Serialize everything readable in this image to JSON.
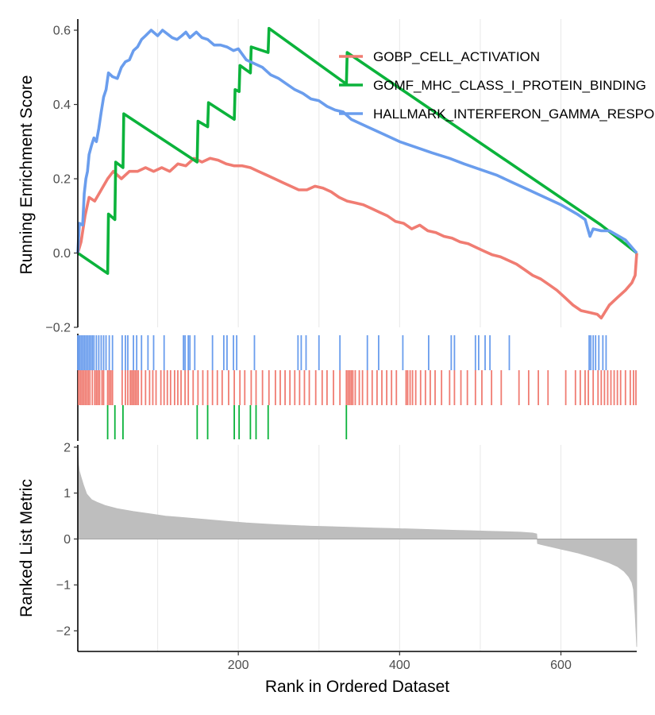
{
  "chart_data": {
    "type": "line",
    "title": "",
    "x_label": "Rank in Ordered Dataset",
    "x_range": [
      1,
      694
    ],
    "x_ticks": [
      200,
      400,
      600
    ],
    "x_tick_labels": [
      "200",
      "400",
      "600"
    ],
    "x_gridlines": [
      100,
      200,
      300,
      400,
      500,
      600
    ],
    "legend_position": "top-right",
    "es_panel": {
      "y_label": "Running Enrichment Score",
      "y_range": [
        -0.2,
        0.63
      ],
      "y_ticks": [
        -0.2,
        0.0,
        0.2,
        0.4,
        0.6
      ],
      "y_tick_labels": [
        "−0.2",
        "0.0",
        "0.2",
        "0.4",
        "0.6"
      ]
    },
    "metric_panel": {
      "y_label": "Ranked List Metric",
      "y_range": [
        -2.45,
        2.05
      ],
      "y_ticks": [
        -2,
        -1,
        0,
        1,
        2
      ],
      "y_tick_labels": [
        "−2",
        "−1",
        "0",
        "1",
        "2"
      ],
      "fill_color": "#bebebe"
    },
    "series": [
      {
        "name": "GOBP_CELL_ACTIVATION",
        "color": "#f07c72",
        "es_curve": [
          [
            1,
            0.0
          ],
          [
            5,
            0.03
          ],
          [
            10,
            0.1
          ],
          [
            15,
            0.15
          ],
          [
            22,
            0.14
          ],
          [
            30,
            0.17
          ],
          [
            38,
            0.2
          ],
          [
            45,
            0.22
          ],
          [
            55,
            0.2
          ],
          [
            65,
            0.22
          ],
          [
            75,
            0.22
          ],
          [
            85,
            0.23
          ],
          [
            95,
            0.22
          ],
          [
            105,
            0.23
          ],
          [
            115,
            0.22
          ],
          [
            125,
            0.24
          ],
          [
            135,
            0.235
          ],
          [
            145,
            0.255
          ],
          [
            155,
            0.245
          ],
          [
            165,
            0.255
          ],
          [
            175,
            0.25
          ],
          [
            185,
            0.24
          ],
          [
            195,
            0.235
          ],
          [
            205,
            0.235
          ],
          [
            215,
            0.23
          ],
          [
            225,
            0.22
          ],
          [
            235,
            0.21
          ],
          [
            245,
            0.2
          ],
          [
            255,
            0.19
          ],
          [
            265,
            0.18
          ],
          [
            275,
            0.17
          ],
          [
            285,
            0.17
          ],
          [
            295,
            0.18
          ],
          [
            305,
            0.175
          ],
          [
            315,
            0.165
          ],
          [
            325,
            0.15
          ],
          [
            335,
            0.14
          ],
          [
            345,
            0.135
          ],
          [
            355,
            0.13
          ],
          [
            365,
            0.12
          ],
          [
            375,
            0.11
          ],
          [
            385,
            0.1
          ],
          [
            395,
            0.085
          ],
          [
            405,
            0.08
          ],
          [
            415,
            0.065
          ],
          [
            425,
            0.075
          ],
          [
            435,
            0.06
          ],
          [
            445,
            0.055
          ],
          [
            455,
            0.045
          ],
          [
            465,
            0.04
          ],
          [
            475,
            0.03
          ],
          [
            485,
            0.025
          ],
          [
            495,
            0.015
          ],
          [
            505,
            0.005
          ],
          [
            515,
            -0.005
          ],
          [
            525,
            -0.01
          ],
          [
            535,
            -0.02
          ],
          [
            545,
            -0.03
          ],
          [
            555,
            -0.045
          ],
          [
            565,
            -0.06
          ],
          [
            575,
            -0.07
          ],
          [
            585,
            -0.085
          ],
          [
            595,
            -0.1
          ],
          [
            605,
            -0.12
          ],
          [
            615,
            -0.14
          ],
          [
            625,
            -0.155
          ],
          [
            635,
            -0.16
          ],
          [
            645,
            -0.165
          ],
          [
            650,
            -0.175
          ],
          [
            660,
            -0.14
          ],
          [
            670,
            -0.12
          ],
          [
            680,
            -0.1
          ],
          [
            688,
            -0.08
          ],
          [
            692,
            -0.06
          ],
          [
            694,
            0.0
          ]
        ],
        "hits": [
          2,
          4,
          6,
          8,
          10,
          12,
          14,
          16,
          19,
          22,
          24,
          26,
          28,
          31,
          33,
          38,
          40,
          42,
          44,
          56,
          60,
          63,
          66,
          68,
          70,
          72,
          74,
          76,
          80,
          85,
          90,
          94,
          98,
          104,
          108,
          112,
          116,
          121,
          125,
          129,
          134,
          138,
          144,
          150,
          156,
          162,
          168,
          174,
          180,
          188,
          195,
          202,
          208,
          216,
          222,
          230,
          238,
          246,
          252,
          258,
          264,
          270,
          276,
          282,
          288,
          296,
          304,
          310,
          318,
          326,
          334,
          336,
          338,
          340,
          342,
          345,
          350,
          354,
          360,
          366,
          372,
          378,
          384,
          390,
          396,
          408,
          410,
          413,
          416,
          420,
          426,
          432,
          438,
          444,
          452,
          462,
          468,
          476,
          484,
          494,
          502,
          514,
          526,
          548,
          560,
          572,
          584,
          606,
          618,
          624,
          630,
          634,
          640,
          646,
          650,
          654,
          658,
          662,
          666,
          670,
          674,
          680,
          686,
          690,
          693
        ]
      },
      {
        "name": "GOMF_MHC_CLASS_I_PROTEIN_BINDING",
        "color": "#0bb33b",
        "es_curve": [
          [
            1,
            0.0
          ],
          [
            38,
            -0.055
          ],
          [
            39,
            0.105
          ],
          [
            47,
            0.09
          ],
          [
            48,
            0.245
          ],
          [
            57,
            0.23
          ],
          [
            58,
            0.375
          ],
          [
            149,
            0.245
          ],
          [
            150,
            0.355
          ],
          [
            162,
            0.34
          ],
          [
            163,
            0.405
          ],
          [
            195,
            0.36
          ],
          [
            196,
            0.44
          ],
          [
            201,
            0.435
          ],
          [
            202,
            0.505
          ],
          [
            215,
            0.485
          ],
          [
            216,
            0.555
          ],
          [
            237,
            0.54
          ],
          [
            238,
            0.605
          ],
          [
            334,
            0.455
          ],
          [
            335,
            0.54
          ],
          [
            650,
            0.075
          ],
          [
            694,
            0.0
          ]
        ],
        "hits": [
          38,
          47,
          57,
          149,
          162,
          195,
          201,
          215,
          222,
          237,
          334
        ]
      },
      {
        "name": "HALLMARK_INTERFERON_GAMMA_RESPONSE",
        "color": "#6a9ded",
        "es_curve": [
          [
            1,
            0.0
          ],
          [
            3,
            0.08
          ],
          [
            7,
            0.075
          ],
          [
            9,
            0.16
          ],
          [
            11,
            0.2
          ],
          [
            13,
            0.22
          ],
          [
            15,
            0.265
          ],
          [
            18,
            0.29
          ],
          [
            21,
            0.31
          ],
          [
            24,
            0.3
          ],
          [
            27,
            0.335
          ],
          [
            30,
            0.38
          ],
          [
            33,
            0.42
          ],
          [
            36,
            0.44
          ],
          [
            39,
            0.485
          ],
          [
            44,
            0.475
          ],
          [
            50,
            0.47
          ],
          [
            55,
            0.5
          ],
          [
            60,
            0.515
          ],
          [
            65,
            0.52
          ],
          [
            70,
            0.545
          ],
          [
            75,
            0.555
          ],
          [
            80,
            0.575
          ],
          [
            85,
            0.585
          ],
          [
            92,
            0.6
          ],
          [
            100,
            0.585
          ],
          [
            106,
            0.6
          ],
          [
            112,
            0.59
          ],
          [
            118,
            0.58
          ],
          [
            124,
            0.575
          ],
          [
            130,
            0.585
          ],
          [
            135,
            0.595
          ],
          [
            140,
            0.58
          ],
          [
            148,
            0.595
          ],
          [
            155,
            0.58
          ],
          [
            162,
            0.575
          ],
          [
            170,
            0.56
          ],
          [
            178,
            0.56
          ],
          [
            186,
            0.555
          ],
          [
            194,
            0.545
          ],
          [
            200,
            0.55
          ],
          [
            210,
            0.52
          ],
          [
            220,
            0.51
          ],
          [
            230,
            0.5
          ],
          [
            240,
            0.48
          ],
          [
            250,
            0.47
          ],
          [
            260,
            0.455
          ],
          [
            270,
            0.44
          ],
          [
            280,
            0.43
          ],
          [
            290,
            0.415
          ],
          [
            300,
            0.41
          ],
          [
            310,
            0.395
          ],
          [
            320,
            0.385
          ],
          [
            330,
            0.38
          ],
          [
            340,
            0.36
          ],
          [
            360,
            0.34
          ],
          [
            380,
            0.32
          ],
          [
            400,
            0.3
          ],
          [
            420,
            0.285
          ],
          [
            440,
            0.27
          ],
          [
            462,
            0.255
          ],
          [
            480,
            0.24
          ],
          [
            500,
            0.225
          ],
          [
            520,
            0.21
          ],
          [
            540,
            0.19
          ],
          [
            560,
            0.17
          ],
          [
            580,
            0.15
          ],
          [
            600,
            0.13
          ],
          [
            620,
            0.105
          ],
          [
            630,
            0.09
          ],
          [
            636,
            0.045
          ],
          [
            640,
            0.065
          ],
          [
            650,
            0.06
          ],
          [
            660,
            0.06
          ],
          [
            680,
            0.035
          ],
          [
            694,
            0.0
          ]
        ],
        "hits": [
          1,
          2,
          3,
          5,
          7,
          9,
          11,
          13,
          15,
          17,
          19,
          21,
          24,
          27,
          30,
          33,
          36,
          40,
          44,
          56,
          60,
          63,
          70,
          74,
          80,
          88,
          95,
          108,
          132,
          134,
          138,
          140,
          146,
          168,
          182,
          186,
          194,
          198,
          220,
          274,
          278,
          284,
          300,
          326,
          360,
          374,
          404,
          436,
          464,
          468,
          494,
          498,
          506,
          512,
          536,
          635,
          637,
          640,
          643,
          647,
          652,
          656
        ]
      }
    ],
    "metric": [
      [
        1,
        1.95
      ],
      [
        2,
        1.62
      ],
      [
        3,
        1.48
      ],
      [
        5,
        1.35
      ],
      [
        8,
        1.18
      ],
      [
        12,
        0.98
      ],
      [
        18,
        0.86
      ],
      [
        25,
        0.8
      ],
      [
        35,
        0.73
      ],
      [
        50,
        0.66
      ],
      [
        70,
        0.6
      ],
      [
        90,
        0.55
      ],
      [
        110,
        0.5
      ],
      [
        130,
        0.47
      ],
      [
        150,
        0.44
      ],
      [
        170,
        0.41
      ],
      [
        190,
        0.38
      ],
      [
        210,
        0.35
      ],
      [
        230,
        0.33
      ],
      [
        250,
        0.31
      ],
      [
        270,
        0.295
      ],
      [
        290,
        0.28
      ],
      [
        310,
        0.27
      ],
      [
        330,
        0.26
      ],
      [
        350,
        0.25
      ],
      [
        370,
        0.24
      ],
      [
        390,
        0.23
      ],
      [
        410,
        0.22
      ],
      [
        430,
        0.21
      ],
      [
        450,
        0.2
      ],
      [
        470,
        0.19
      ],
      [
        490,
        0.18
      ],
      [
        510,
        0.17
      ],
      [
        530,
        0.16
      ],
      [
        550,
        0.15
      ],
      [
        565,
        0.13
      ],
      [
        570,
        0.11
      ],
      [
        571,
        -0.1
      ],
      [
        575,
        -0.12
      ],
      [
        590,
        -0.18
      ],
      [
        600,
        -0.22
      ],
      [
        610,
        -0.26
      ],
      [
        620,
        -0.3
      ],
      [
        630,
        -0.35
      ],
      [
        640,
        -0.4
      ],
      [
        650,
        -0.46
      ],
      [
        660,
        -0.52
      ],
      [
        670,
        -0.6
      ],
      [
        678,
        -0.7
      ],
      [
        684,
        -0.82
      ],
      [
        688,
        -0.95
      ],
      [
        690,
        -1.1
      ],
      [
        691,
        -1.4
      ],
      [
        692,
        -1.65
      ],
      [
        693,
        -2.0
      ],
      [
        694,
        -2.35
      ]
    ]
  }
}
